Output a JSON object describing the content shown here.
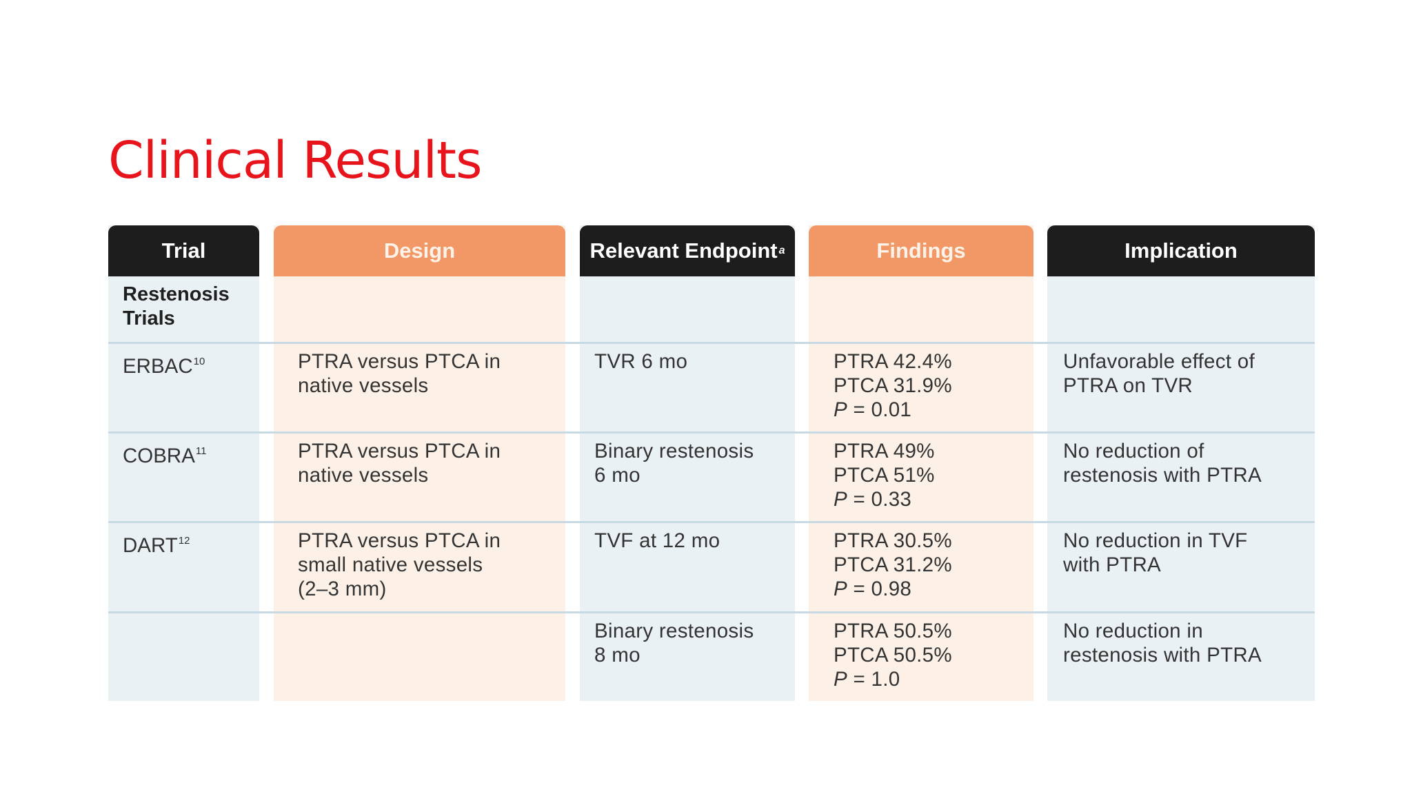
{
  "title": "Clinical Results",
  "table": {
    "headers": {
      "trial": "Trial",
      "design": "Design",
      "endpoint": "Relevant Endpoint",
      "endpoint_sup": "a",
      "findings": "Findings",
      "implication": "Implication"
    },
    "section_label": [
      "Restenosis",
      "Trials"
    ],
    "rows": [
      {
        "trial": "ERBAC",
        "ref": "10",
        "design": [
          "PTRA versus PTCA in",
          "native vessels"
        ],
        "endpoint": [
          "TVR 6 mo"
        ],
        "findings": [
          "PTRA 42.4%",
          "PTCA 31.9%"
        ],
        "p_label": "P",
        "p_value": "= 0.01",
        "implication": [
          "Unfavorable effect of",
          "PTRA on TVR"
        ]
      },
      {
        "trial": "COBRA",
        "ref": "11",
        "design": [
          "PTRA versus PTCA in",
          "native vessels"
        ],
        "endpoint": [
          "Binary restenosis",
          "6 mo"
        ],
        "findings": [
          "PTRA 49%",
          "PTCA 51%"
        ],
        "p_label": "P",
        "p_value": "= 0.33",
        "implication": [
          "No reduction of",
          "restenosis with PTRA"
        ]
      },
      {
        "trial": "DART",
        "ref": "12",
        "design": [
          "PTRA versus PTCA in",
          "small native vessels",
          "(2–3 mm)"
        ],
        "endpoint": [
          "TVF at 12 mo"
        ],
        "findings": [
          "PTRA 30.5%",
          "PTCA 31.2%"
        ],
        "p_label": "P",
        "p_value": "= 0.98",
        "implication": [
          "No reduction in TVF",
          "with PTRA"
        ]
      },
      {
        "trial": "",
        "ref": "",
        "design": [],
        "endpoint": [
          "Binary restenosis",
          "8 mo"
        ],
        "findings": [
          "PTRA 50.5%",
          "PTCA 50.5%"
        ],
        "p_label": "P",
        "p_value": "= 1.0",
        "implication": [
          "No reduction in",
          "restenosis with PTRA"
        ]
      }
    ]
  }
}
